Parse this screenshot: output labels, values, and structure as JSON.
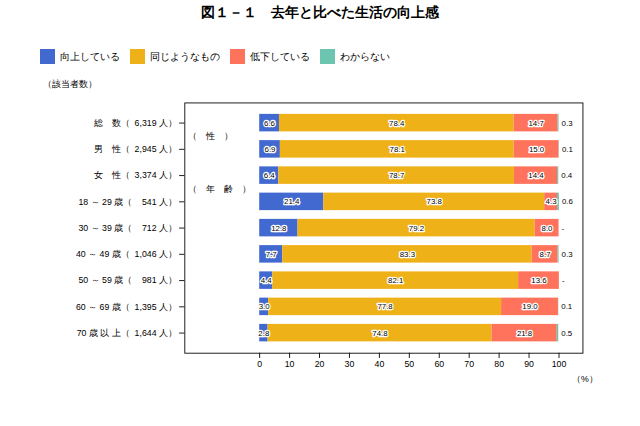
{
  "chart_data": {
    "type": "bar",
    "orientation": "horizontal",
    "stacked": true,
    "title": "図１－１　去年と比べた生活の向上感",
    "categories": [
      "総　数（  6,319 人）",
      "男　性（  2,945 人）",
      "女　性（  3,374 人）",
      "18 ～ 29 歳（    541 人）",
      "30 ～ 39 歳（    712 人）",
      "40 ～ 49 歳（  1,046 人）",
      "50 ～ 59 歳（    981 人）",
      "60 ～ 69 歳（  1,395 人）",
      "70 歳 以 上（  1,644 人）"
    ],
    "series": [
      {
        "name": "向上している",
        "values": [
          6.6,
          6.9,
          6.4,
          21.4,
          12.8,
          7.7,
          4.4,
          3.0,
          2.8
        ],
        "value_labels": [
          "6.6",
          "6.9",
          "6.4",
          "21.4",
          "12.8",
          "7.7",
          "4.4",
          "3.0",
          "2.8"
        ]
      },
      {
        "name": "同じようなもの",
        "values": [
          78.4,
          78.1,
          78.7,
          73.8,
          79.2,
          83.3,
          82.1,
          77.8,
          74.8
        ],
        "value_labels": [
          "78.4",
          "78.1",
          "78.7",
          "73.8",
          "79.2",
          "83.3",
          "82.1",
          "77.8",
          "74.8"
        ]
      },
      {
        "name": "低下している",
        "values": [
          14.7,
          15.0,
          14.4,
          4.3,
          8.0,
          8.7,
          13.6,
          19.0,
          21.8
        ],
        "value_labels": [
          "14.7",
          "15.0",
          "14.4",
          "4.3",
          "8.0",
          "8.7",
          "13.6",
          "19.0",
          "21.8"
        ]
      },
      {
        "name": "わからない",
        "values": [
          0.3,
          0.1,
          0.4,
          0.6,
          0.0,
          0.3,
          0.0,
          0.1,
          0.5
        ],
        "value_labels": [
          "0.3",
          "0.1",
          "0.4",
          "0.6",
          "-",
          "0.3",
          "-",
          "0.1",
          "0.5"
        ]
      }
    ],
    "xlim": [
      -25,
      108
    ],
    "xticks": [
      0,
      10,
      20,
      30,
      40,
      50,
      60,
      70,
      80,
      90,
      100
    ],
    "xlabel": "（%）",
    "ylabel": "（該当者数）",
    "annotations": [
      {
        "text": "（　性　）",
        "category": "男　性（  2,945 人）"
      },
      {
        "text": "（　年　齢　）",
        "category": "18 ～ 29 歳（    541 人）"
      }
    ],
    "data_labels": true,
    "legend": "top",
    "grid": false
  }
}
